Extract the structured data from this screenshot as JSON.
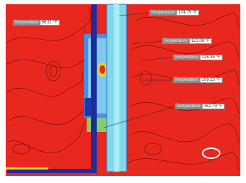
{
  "labels": [
    {
      "name": "Temperature",
      "value": "56.11 °F"
    },
    {
      "name": "Temperature",
      "value": "174.75 °F"
    },
    {
      "name": "Temperature",
      "value": "121.08 °F"
    },
    {
      "name": "Temperature",
      "value": "126.35 °F"
    },
    {
      "name": "Temperature",
      "value": "109.13 °F"
    },
    {
      "name": "Temperature",
      "value": "162.73 °F"
    }
  ]
}
